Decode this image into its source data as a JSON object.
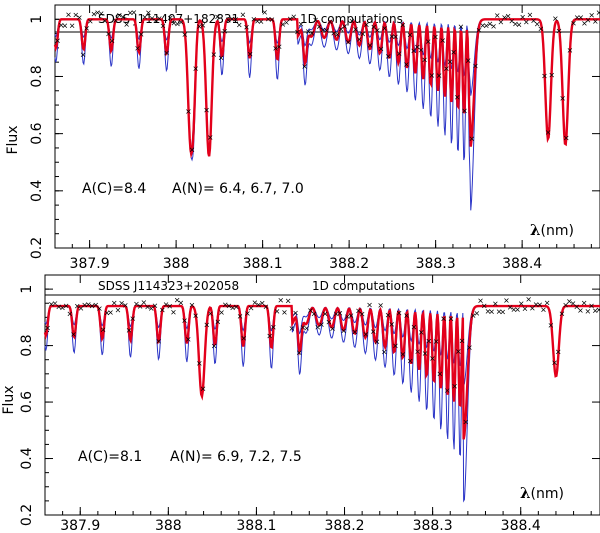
{
  "chart_data": [
    {
      "type": "line",
      "star_label": "SDSS J111407+182831",
      "method_label": "1D computations",
      "annotation_c": "A(C)=8.4",
      "annotation_n": "A(N)= 6.4, 6.7, 7.0",
      "xlabel_symbol": "λ",
      "xlabel_unit": "(nm)",
      "ylabel": "Flux",
      "xlim": [
        387.86,
        388.49
      ],
      "ylim": [
        0.2,
        1.05
      ],
      "xticks": [
        387.9,
        388.0,
        388.1,
        388.2,
        388.3,
        388.4
      ],
      "xtick_labels": [
        "387.9",
        "388",
        "388.1",
        "388.2",
        "388.3",
        "388.4"
      ],
      "yticks": [
        0.2,
        0.4,
        0.6,
        0.8,
        1.0
      ],
      "ytick_labels": [
        "0.2",
        "0.4",
        "0.6",
        "0.8",
        "1"
      ],
      "continuum": 1.0,
      "molecular_bands": {
        "depth_scale": 1.0,
        "band_edge": 388.34
      },
      "atomic_lines": [
        {
          "center": 388.017,
          "depth": 0.45
        },
        {
          "center": 388.038,
          "depth": 0.48
        },
        {
          "center": 388.43,
          "depth": 0.42
        },
        {
          "center": 388.45,
          "depth": 0.44
        }
      ],
      "series": [
        {
          "name": "A(N)=6.4",
          "color": "#2b35c7",
          "role": "model-thin",
          "band_strength": 0.6
        },
        {
          "name": "A(N)=6.7",
          "color": "#e3001b",
          "role": "best-fit",
          "band_strength": 1.0
        },
        {
          "name": "A(N)=7.0",
          "color": "#2b35c7",
          "role": "model-thin",
          "band_strength": 1.5
        },
        {
          "name": "observed",
          "color": "#000000",
          "role": "observed-crosses"
        }
      ]
    },
    {
      "type": "line",
      "star_label": "SDSS J114323+202058",
      "method_label": "1D computations",
      "annotation_c": "A(C)=8.1",
      "annotation_n": "A(N)= 6.9, 7.2, 7.5",
      "xlabel_symbol": "λ",
      "xlabel_unit": "(nm)",
      "ylabel": "Flux",
      "xlim": [
        387.86,
        388.49
      ],
      "ylim": [
        0.2,
        1.05
      ],
      "xticks": [
        387.9,
        388.0,
        388.1,
        388.2,
        388.3,
        388.4
      ],
      "xtick_labels": [
        "387.9",
        "388",
        "388.1",
        "388.2",
        "388.3",
        "388.4"
      ],
      "yticks": [
        0.2,
        0.4,
        0.6,
        0.8,
        1.0
      ],
      "ytick_labels": [
        "0.2",
        "0.4",
        "0.6",
        "0.8",
        "1"
      ],
      "continuum": 0.94,
      "molecular_bands": {
        "depth_scale": 1.05,
        "band_edge": 388.335
      },
      "atomic_lines": [
        {
          "center": 388.038,
          "depth": 0.32
        },
        {
          "center": 388.44,
          "depth": 0.25
        }
      ],
      "series": [
        {
          "name": "A(N)=6.9",
          "color": "#2b35c7",
          "role": "model-thin",
          "band_strength": 0.6
        },
        {
          "name": "A(N)=7.2",
          "color": "#e3001b",
          "role": "best-fit",
          "band_strength": 1.0
        },
        {
          "name": "A(N)=7.5",
          "color": "#2b35c7",
          "role": "model-thin",
          "band_strength": 1.5
        },
        {
          "name": "observed",
          "color": "#000000",
          "role": "observed-crosses"
        }
      ]
    }
  ]
}
